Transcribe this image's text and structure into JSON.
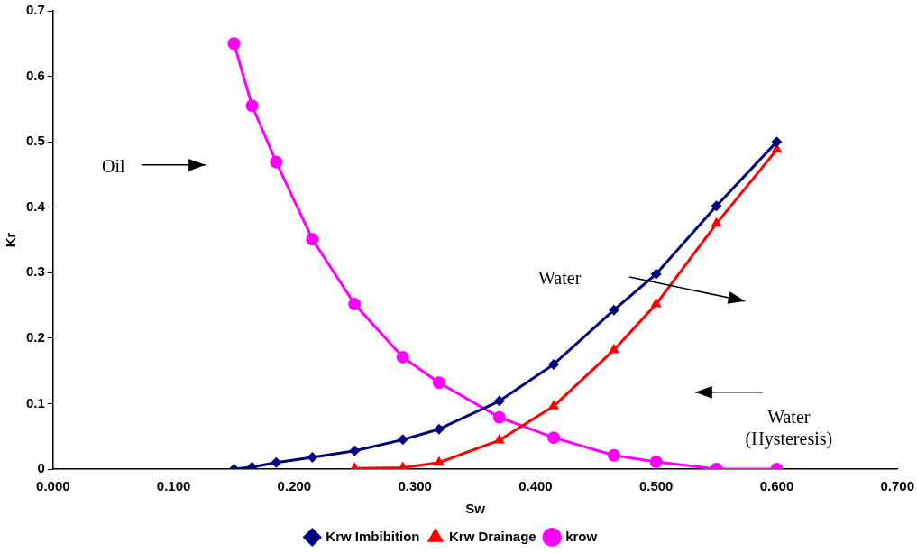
{
  "chart_data": {
    "type": "line",
    "xlabel": "Sw",
    "ylabel": "Kr",
    "xlim": [
      0,
      0.7
    ],
    "xticks": [
      {
        "value": 0,
        "label": "0.000"
      },
      {
        "value": 0.1,
        "label": "0.100"
      },
      {
        "value": 0.2,
        "label": "0.200"
      },
      {
        "value": 0.3,
        "label": "0.300"
      },
      {
        "value": 0.4,
        "label": "0.400"
      },
      {
        "value": 0.5,
        "label": "0.500"
      },
      {
        "value": 0.6,
        "label": "0.600"
      },
      {
        "value": 0.7,
        "label": "0.700"
      }
    ],
    "ylim": [
      0,
      0.7
    ],
    "yticks": [
      0,
      0.1,
      0.2,
      0.3,
      0.4,
      0.5,
      0.6,
      0.7
    ],
    "grid": false,
    "legend": "bottom",
    "line_style": "solid",
    "series": [
      {
        "name": "Krw Imbibition",
        "color": "#000080",
        "marker": "diamond",
        "x": [
          0.15,
          0.165,
          0.185,
          0.215,
          0.25,
          0.29,
          0.32,
          0.37,
          0.415,
          0.465,
          0.5,
          0.55,
          0.6
        ],
        "values": [
          0,
          0.003,
          0.01,
          0.018,
          0.028,
          0.045,
          0.061,
          0.104,
          0.16,
          0.243,
          0.298,
          0.402,
          0.5
        ]
      },
      {
        "name": "Krw Drainage",
        "color": "#ff0000",
        "marker": "triangle",
        "x": [
          0.25,
          0.29,
          0.32,
          0.37,
          0.415,
          0.465,
          0.5,
          0.55,
          0.6
        ],
        "values": [
          0.001,
          0.002,
          0.01,
          0.044,
          0.096,
          0.182,
          0.252,
          0.375,
          0.488
        ]
      },
      {
        "name": "krow",
        "color": "#ff00ff",
        "marker": "circle",
        "x": [
          0.15,
          0.165,
          0.185,
          0.215,
          0.25,
          0.29,
          0.32,
          0.37,
          0.415,
          0.465,
          0.5,
          0.55,
          0.6
        ],
        "values": [
          0.65,
          0.555,
          0.469,
          0.351,
          0.252,
          0.171,
          0.132,
          0.079,
          0.048,
          0.021,
          0.011,
          0,
          0
        ]
      }
    ],
    "annotations": [
      "Oil",
      "Water",
      "Water (Hysteresis)"
    ]
  }
}
